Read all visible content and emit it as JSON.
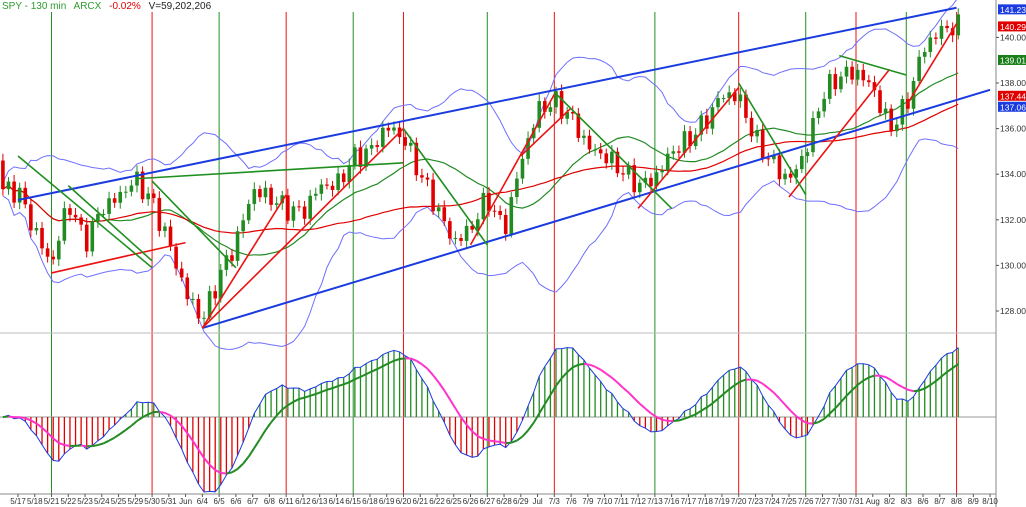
{
  "header": {
    "symbol": "SPY - 130 min",
    "exchange": "ARCX",
    "change": "-0.02%",
    "volume": "V=59,202,206"
  },
  "colors": {
    "up": "#228b22",
    "down": "#e00000",
    "band": "#6f6fff",
    "channel": "#1a3be0",
    "ma_fast": "#228b22",
    "ma_slow": "#e00000",
    "signal_down": "#ff33cc"
  },
  "price_labels": [
    {
      "text": "141.23",
      "price": 141.23,
      "color": "#1a3be0"
    },
    {
      "text": "140.29",
      "price": 140.29,
      "color": "#e00000"
    },
    {
      "text": "139.01",
      "price": 139.01,
      "color": "#1a7f1a"
    },
    {
      "text": "137.44",
      "price": 137.44,
      "color": "#e00000"
    },
    {
      "text": "137.06",
      "price": 137.06,
      "color": "#1a3be0"
    }
  ],
  "chart_data": {
    "type": "candlestick",
    "title": "SPY - 130 min",
    "y_ticks": [
      "128.00",
      "130.00",
      "132.00",
      "134.00",
      "136.00",
      "138.00",
      "140.00"
    ],
    "ylim": [
      127,
      141.5
    ],
    "x_ticks": [
      "5/17",
      "5/18",
      "5/21",
      "5/22",
      "5/23",
      "5/24",
      "5/25",
      "5/29",
      "5/30",
      "5/31",
      "Jun",
      "6/4",
      "6/5",
      "6/6",
      "6/7",
      "6/8",
      "6/11",
      "6/12",
      "6/13",
      "6/14",
      "6/15",
      "6/18",
      "6/19",
      "6/20",
      "6/21",
      "6/22",
      "6/25",
      "6/26",
      "6/27",
      "6/28",
      "6/29",
      "Jul",
      "7/3",
      "7/6",
      "7/9",
      "7/10",
      "7/11",
      "7/12",
      "7/13",
      "7/16",
      "7/17",
      "7/18",
      "7/19",
      "7/20",
      "7/23",
      "7/24",
      "7/25",
      "7/26",
      "7/27",
      "7/30",
      "7/31",
      "Aug",
      "8/2",
      "8/3",
      "8/6",
      "8/7",
      "8/8",
      "8/9",
      "8/10"
    ],
    "close_path": [
      [
        "5/17",
        133.3
      ],
      [
        "5/18",
        131.5
      ],
      [
        "5/21",
        130
      ],
      [
        "5/22",
        132.8
      ],
      [
        "5/23",
        131
      ],
      [
        "5/24",
        132.5
      ],
      [
        "5/25",
        133
      ],
      [
        "5/29",
        133.8
      ],
      [
        "5/30",
        132.8
      ],
      [
        "5/31",
        131
      ],
      [
        "Jun",
        128.8
      ],
      [
        "6/4",
        127.6
      ],
      [
        "6/5",
        129.5
      ],
      [
        "6/6",
        131
      ],
      [
        "6/7",
        133.3
      ],
      [
        "6/8",
        133
      ],
      [
        "6/11",
        132.5
      ],
      [
        "6/12",
        132.3
      ],
      [
        "6/13",
        133.5
      ],
      [
        "6/14",
        133.5
      ],
      [
        "6/15",
        134.7
      ],
      [
        "6/18",
        135
      ],
      [
        "6/19",
        136.1
      ],
      [
        "6/20",
        135.6
      ],
      [
        "6/21",
        134
      ],
      [
        "6/22",
        132.5
      ],
      [
        "6/25",
        131
      ],
      [
        "6/26",
        131.6
      ],
      [
        "6/27",
        133
      ],
      [
        "6/28",
        131.5
      ],
      [
        "6/29",
        134.5
      ],
      [
        "Jul",
        136.8
      ],
      [
        "7/3",
        137.2
      ],
      [
        "7/6",
        136.5
      ],
      [
        "7/9",
        135.2
      ],
      [
        "7/10",
        134.8
      ],
      [
        "7/11",
        134.2
      ],
      [
        "7/12",
        133.5
      ],
      [
        "7/13",
        133.8
      ],
      [
        "7/16",
        135
      ],
      [
        "7/17",
        135.5
      ],
      [
        "7/18",
        136.3
      ],
      [
        "7/19",
        137.5
      ],
      [
        "7/20",
        137.4
      ],
      [
        "7/23",
        135.5
      ],
      [
        "7/24",
        134.5
      ],
      [
        "7/25",
        133.7
      ],
      [
        "7/26",
        135
      ],
      [
        "7/27",
        137.5
      ],
      [
        "7/30",
        138.3
      ],
      [
        "7/31",
        138.5
      ],
      [
        "Aug",
        137.8
      ],
      [
        "8/2",
        136
      ],
      [
        "8/3",
        137
      ],
      [
        "8/6",
        139.5
      ],
      [
        "8/7",
        140.3
      ],
      [
        "8/8",
        140.5
      ]
    ],
    "cycle_lines": [
      [
        "5/21",
        "green"
      ],
      [
        "5/30",
        "red"
      ],
      [
        "6/5",
        "green"
      ],
      [
        "6/11",
        "red"
      ],
      [
        "6/15",
        "green"
      ],
      [
        "6/20",
        "red"
      ],
      [
        "6/27",
        "green"
      ],
      [
        "7/3",
        "red"
      ],
      [
        "7/13",
        "green"
      ],
      [
        "7/20",
        "red"
      ],
      [
        "7/26",
        "green"
      ],
      [
        "7/31",
        "red"
      ],
      [
        "8/3",
        "green"
      ],
      [
        "8/8",
        "red"
      ]
    ],
    "trendlines": [
      {
        "color": "blue",
        "from": [
          "5/17",
          132.87
        ],
        "to": [
          "8/8",
          141.3
        ]
      },
      {
        "color": "blue",
        "from": [
          "6/4",
          127.25
        ],
        "to": [
          "8/10",
          137.7
        ]
      },
      {
        "color": "red",
        "from": [
          "5/21",
          129.67
        ],
        "to": [
          "Jun",
          131.0
        ]
      },
      {
        "color": "red",
        "from": [
          "6/4",
          127.25
        ],
        "to": [
          "6/20",
          136.0
        ]
      },
      {
        "color": "red",
        "from": [
          "6/4",
          127.25
        ],
        "to": [
          "6/11",
          133.1
        ]
      },
      {
        "color": "red",
        "from": [
          "6/26",
          130.9
        ],
        "to": [
          "7/3",
          137.5
        ]
      },
      {
        "color": "red",
        "from": [
          "6/29",
          134.8
        ],
        "to": [
          "7/6",
          136.9
        ]
      },
      {
        "color": "red",
        "from": [
          "7/12",
          132.5
        ],
        "to": [
          "7/20",
          137.8
        ]
      },
      {
        "color": "red",
        "from": [
          "7/25",
          133.0
        ],
        "to": [
          "8/2",
          138.6
        ]
      },
      {
        "color": "red",
        "from": [
          "8/3",
          137.0
        ],
        "to": [
          "8/8",
          140.6
        ]
      },
      {
        "color": "green",
        "from": [
          "5/17",
          134.8
        ],
        "to": [
          "5/30",
          129.9
        ]
      },
      {
        "color": "green",
        "from": [
          "5/22",
          133.5
        ],
        "to": [
          "5/30",
          130.2
        ]
      },
      {
        "color": "green",
        "from": [
          "5/29",
          133.8
        ],
        "to": [
          "6/20",
          134.5
        ]
      },
      {
        "color": "green",
        "from": [
          "5/30",
          133.7
        ],
        "to": [
          "6/6",
          129.9
        ]
      },
      {
        "color": "green",
        "from": [
          "6/20",
          136.0
        ],
        "to": [
          "6/27",
          130.9
        ]
      },
      {
        "color": "green",
        "from": [
          "7/3",
          137.6
        ],
        "to": [
          "7/16",
          132.5
        ]
      },
      {
        "color": "green",
        "from": [
          "7/20",
          138.0
        ],
        "to": [
          "7/26",
          133.1
        ]
      },
      {
        "color": "green",
        "from": [
          "7/30",
          139.2
        ],
        "to": [
          "8/3",
          138.35
        ]
      }
    ]
  }
}
